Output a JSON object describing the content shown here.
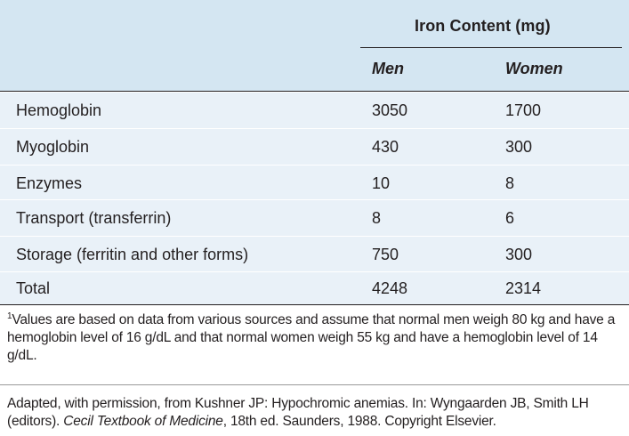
{
  "table": {
    "group_header": "Iron Content (mg)",
    "columns": [
      "Men",
      "Women"
    ],
    "rows": [
      {
        "label": "Hemoglobin",
        "men": "3050",
        "women": "1700"
      },
      {
        "label": "Myoglobin",
        "men": "430",
        "women": "300"
      },
      {
        "label": "Enzymes",
        "men": "10",
        "women": "8"
      },
      {
        "label": "Transport (transferrin)",
        "men": "8",
        "women": "6"
      },
      {
        "label": "Storage (ferritin and other forms)",
        "men": "750",
        "women": "300"
      },
      {
        "label": "Total",
        "men": "4248",
        "women": "2314"
      }
    ]
  },
  "footnote": {
    "marker": "1",
    "text": "Values are based on data from various sources and assume that normal men weigh 80 kg and have a hemoglobin level of 16 g/dL and that normal women weigh 55 kg and have a hemoglobin level of 14 g/dL."
  },
  "source": {
    "before": "Adapted, with permission, from Kushner JP: Hypochromic anemias. In: Wyngaarden JB, Smith LH (editors). ",
    "title": "Cecil Textbook of Medicine",
    "after": ", 18th ed. Saunders, 1988. Copyright Elsevier."
  },
  "colors": {
    "header_bg": "#d4e6f2",
    "row_shade": "#e9f1f8",
    "text": "#231f20"
  }
}
